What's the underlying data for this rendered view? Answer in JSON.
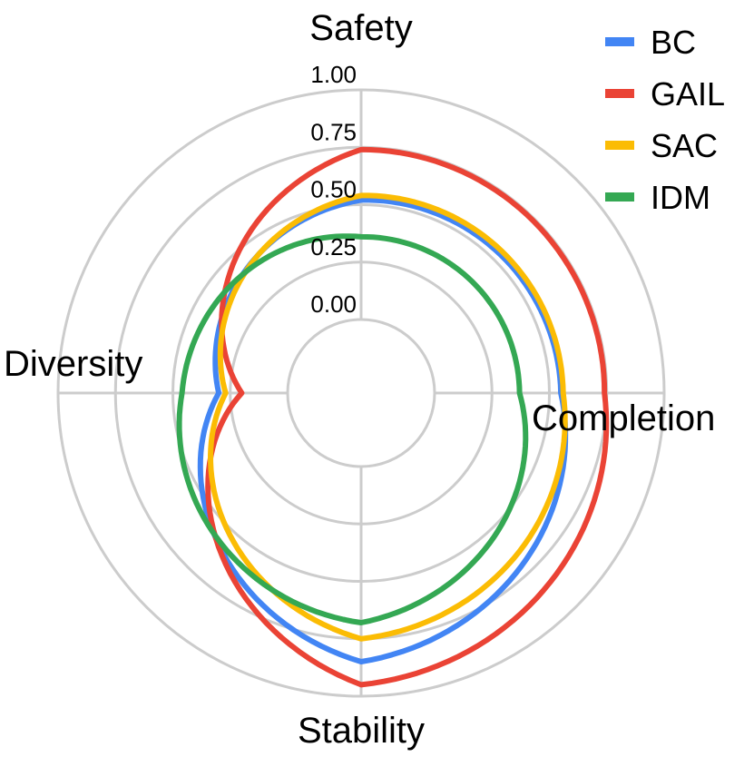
{
  "chart_data": {
    "type": "radar",
    "title": "",
    "axes": [
      "Safety",
      "Completion",
      "Stability",
      "Diversity"
    ],
    "radial_range": [
      0,
      1
    ],
    "radial_ticks": [
      "0.00",
      "0.25",
      "0.50",
      "0.75",
      "1.00"
    ],
    "grid": true,
    "legend_position": "top-right",
    "series": [
      {
        "name": "BC",
        "color": "#4285F4",
        "values": [
          0.52,
          0.55,
          0.85,
          0.3
        ]
      },
      {
        "name": "GAIL",
        "color": "#EA4335",
        "values": [
          0.74,
          0.74,
          0.95,
          0.2
        ]
      },
      {
        "name": "SAC",
        "color": "#FBBC04",
        "values": [
          0.54,
          0.56,
          0.75,
          0.27
        ]
      },
      {
        "name": "IDM",
        "color": "#34A853",
        "values": [
          0.36,
          0.37,
          0.68,
          0.46
        ]
      }
    ]
  }
}
